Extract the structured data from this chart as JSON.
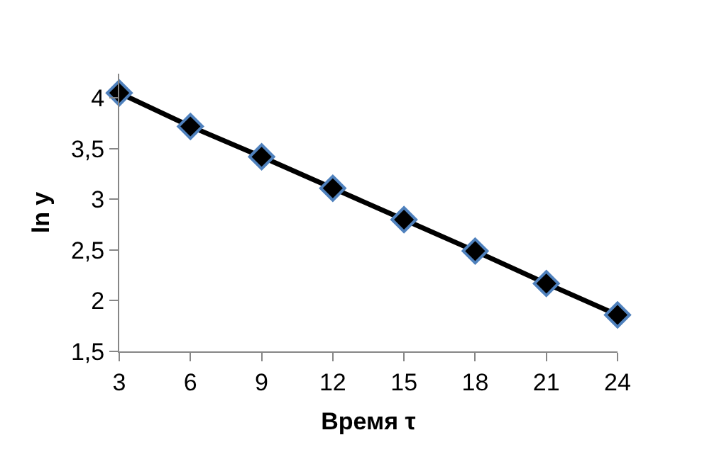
{
  "chart_data": {
    "type": "line",
    "xlabel": "Время τ",
    "ylabel": "ln y",
    "x": [
      3,
      6,
      9,
      12,
      15,
      18,
      21,
      24
    ],
    "series": [
      {
        "color": "#000000",
        "values": [
          4.05,
          3.72,
          3.42,
          3.11,
          2.8,
          2.49,
          2.17,
          1.86
        ]
      }
    ],
    "xlim": [
      3,
      24
    ],
    "xticks": [
      3,
      6,
      9,
      12,
      15,
      18,
      21,
      24
    ],
    "ylim": [
      1.5,
      4.24
    ],
    "yticks": [
      {
        "value": 1.5,
        "label": "1,5"
      },
      2,
      {
        "value": 2.5,
        "label": "2,5"
      },
      3,
      {
        "value": 3.5,
        "label": "3,5"
      },
      4
    ],
    "grid": false,
    "legend": false,
    "marker": "diamond",
    "line_style": "solid"
  }
}
